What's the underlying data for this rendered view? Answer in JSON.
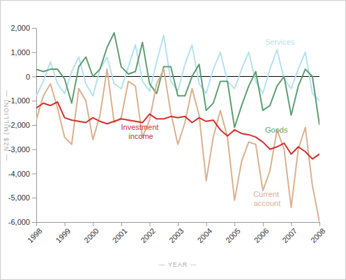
{
  "chart_data": {
    "type": "line",
    "x_label": "— YEAR —",
    "y_label": "— NZ$ (MILLION) —",
    "x": [
      1998,
      1998.25,
      1998.5,
      1998.75,
      1999,
      1999.25,
      1999.5,
      1999.75,
      2000,
      2000.25,
      2000.5,
      2000.75,
      2001,
      2001.25,
      2001.5,
      2001.75,
      2002,
      2002.25,
      2002.5,
      2002.75,
      2003,
      2003.25,
      2003.5,
      2003.75,
      2004,
      2004.25,
      2004.5,
      2004.75,
      2005,
      2005.25,
      2005.5,
      2005.75,
      2006,
      2006.25,
      2006.5,
      2006.75,
      2007,
      2007.25,
      2007.5,
      2007.75,
      2008
    ],
    "xlim": [
      1998,
      2008
    ],
    "xticks": [
      1998,
      1999,
      2000,
      2001,
      2002,
      2003,
      2004,
      2005,
      2006,
      2007,
      2008
    ],
    "ylim": [
      -6000,
      2000
    ],
    "yticks": [
      {
        "value": -6000,
        "label": "-6,000"
      },
      {
        "value": -5000,
        "label": "-5,000"
      },
      {
        "value": -4000,
        "label": "-4,000"
      },
      {
        "value": -3000,
        "label": "-3,000"
      },
      {
        "value": -2000,
        "label": "-2,000"
      },
      {
        "value": -1000,
        "label": "-1,000"
      },
      0,
      {
        "value": 1000,
        "label": "1,000"
      },
      {
        "value": 2000,
        "label": "2,000"
      }
    ],
    "grid": false,
    "series": [
      {
        "name": "Services",
        "color": "#b5e1f2",
        "values": [
          -800,
          -200,
          600,
          -300,
          -700,
          200,
          800,
          -300,
          -800,
          300,
          800,
          -300,
          -500,
          400,
          1300,
          -200,
          -600,
          600,
          1700,
          -200,
          -600,
          500,
          1300,
          -300,
          -700,
          300,
          1000,
          -200,
          -500,
          300,
          1000,
          -200,
          -700,
          300,
          1100,
          -100,
          -500,
          300,
          1000,
          -700,
          -1000
        ]
      },
      {
        "name": "Goods",
        "color": "#5e9e72",
        "values": [
          300,
          200,
          300,
          300,
          -100,
          -1100,
          400,
          800,
          0,
          300,
          1200,
          1800,
          400,
          100,
          200,
          1400,
          -300,
          -700,
          400,
          400,
          -800,
          -800,
          0,
          500,
          -1400,
          -1100,
          -200,
          -200,
          -2100,
          -1200,
          -400,
          200,
          -1400,
          -1200,
          -400,
          0,
          -1600,
          -400,
          300,
          0,
          -2000
        ]
      },
      {
        "name": "Investment income",
        "color": "#d32f2f",
        "values": [
          -1300,
          -1100,
          -1200,
          -1050,
          -1700,
          -1800,
          -1850,
          -1900,
          -1700,
          -1850,
          -1950,
          -1850,
          -1750,
          -1800,
          -1850,
          -1900,
          -1550,
          -1750,
          -1750,
          -1650,
          -1700,
          -1650,
          -1900,
          -1700,
          -1850,
          -1800,
          -2200,
          -2450,
          -2200,
          -2350,
          -2400,
          -2500,
          -2700,
          -3000,
          -2900,
          -2750,
          -3200,
          -2900,
          -3100,
          -3400,
          -3200
        ]
      },
      {
        "name": "Current account",
        "color": "#dbb08e",
        "values": [
          -1800,
          -800,
          -300,
          -1300,
          -2500,
          -2800,
          -500,
          -1000,
          -2600,
          -1600,
          300,
          -1900,
          -1700,
          -200,
          -400,
          -2500,
          -1800,
          -300,
          300,
          -1500,
          -2800,
          -1900,
          -500,
          -1600,
          -4300,
          -2500,
          -1400,
          -2500,
          -5100,
          -3500,
          -2700,
          -2800,
          -4700,
          -3900,
          -2200,
          -3000,
          -5400,
          -3000,
          -2100,
          -4500,
          -6000
        ]
      }
    ]
  }
}
